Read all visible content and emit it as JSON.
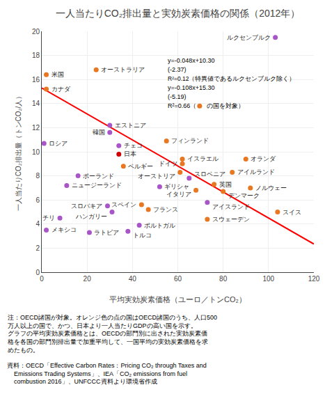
{
  "chart_data": {
    "type": "scatter",
    "title": "一人当たりCO₂排出量と実効炭素価格の関係（2012年）",
    "xlabel": "平均実効炭素価格（ユーロ／トンCO₂）",
    "ylabel": "一人当たりCO₂排出量（トンCO₂/人）",
    "xlim": [
      0,
      120
    ],
    "ylim": [
      0,
      20
    ],
    "xticks": [
      0,
      20,
      40,
      60,
      80,
      100,
      120
    ],
    "yticks": [
      0,
      2,
      4,
      6,
      8,
      10,
      12,
      14,
      16,
      18,
      20
    ],
    "grid": true,
    "data_labels": true,
    "series": [
      {
        "type": "line",
        "x": [
          0,
          120
        ],
        "values": [
          15.3,
          2.34
        ],
        "color": "red"
      },
      {
        "type": "scatter",
        "labels": [
          "ルクセンブルク",
          "オーストラリア",
          "米国",
          "カナダ",
          "エストニア",
          "韓国",
          "ロシア",
          "チェコ",
          "フィンランド",
          "日本",
          "ベルギー",
          "イスラエル",
          "ドイツ",
          "オランダ",
          "ポーランド",
          "オーストリア",
          "スロベニア",
          "アイルランド",
          "ニュージーランド",
          "ギリシャ",
          "英国",
          "イタリア",
          "デンマーク",
          "ノルウェー",
          "スロバキア",
          "ハンガリー",
          "スペイン",
          "フランス",
          "アイスランド",
          "スウェーデン",
          "スイス",
          "チリ",
          "メキシコ",
          "ポルトガル",
          "ラトビア",
          "トルコ"
        ],
        "x": [
          103,
          24,
          2,
          2,
          30,
          30,
          1,
          34,
          55,
          34,
          36,
          62,
          62,
          90,
          16,
          61,
          65,
          84,
          11,
          52,
          76,
          68,
          80,
          92,
          29,
          31,
          44,
          47,
          73,
          73,
          104,
          8,
          2,
          43,
          21,
          38
        ],
        "values": [
          19.5,
          16.8,
          16.4,
          15.2,
          12.2,
          11.6,
          10.7,
          10.5,
          10.9,
          9.8,
          8.8,
          9.4,
          9.0,
          9.4,
          8.0,
          8.3,
          7.8,
          8.3,
          7.2,
          7.1,
          7.3,
          6.8,
          6.7,
          7.0,
          5.5,
          5.0,
          5.6,
          5.2,
          5.8,
          4.4,
          5.0,
          4.5,
          3.5,
          3.9,
          3.3,
          3.4
        ],
        "colors": [
          "#A855C8",
          "#E87722",
          "#E87722",
          "#E87722",
          "#A855C8",
          "#A855C8",
          "#A855C8",
          "#A855C8",
          "#E87722",
          "#CC0000",
          "#E87722",
          "#E87722",
          "#E87722",
          "#E87722",
          "#A855C8",
          "#E87722",
          "#A855C8",
          "#E87722",
          "#A855C8",
          "#A855C8",
          "#E87722",
          "#E87722",
          "#E87722",
          "#E87722",
          "#A855C8",
          "#A855C8",
          "#E87722",
          "#E87722",
          "#A855C8",
          "#E87722",
          "#E87722",
          "#A855C8",
          "#A855C8",
          "#A855C8",
          "#A855C8",
          "#A855C8"
        ]
      }
    ],
    "annotations": [
      {
        "text": "y=-0.048x+10.30"
      },
      {
        "text": "(-2.37)"
      },
      {
        "text": "R²=0.12（特異値であるルクセンブルク除く）"
      },
      {
        "text": "y=-0.108x+15.30"
      },
      {
        "text": "(-5.19)"
      },
      {
        "text": [
          "R²=0.66（",
          " の国を対象）"
        ],
        "marker": "circle",
        "color": "#E87722"
      }
    ],
    "note": "注：OECD諸国が対象。オレンジ色の点の国はOECD諸国のうち、人口500\n万人以上の国で、かつ、日本より一人当たりGDPの高い国を示す。\nグラフの平均実効炭素価格とは、OECDの部門別に出された実効炭素価\n格を各国の部門別排出量で加重平均して、一国平均の実効炭素価格を求\nめたもの。",
    "source": "資料：OECD「Effective Carbon Rates：Pricing CO₂ through Taxes and\n    Emissions Trading Systems」、IEA「CO₂ emissions from fuel\n    combustion 2016」、UNFCCC資料より環境省作成"
  }
}
